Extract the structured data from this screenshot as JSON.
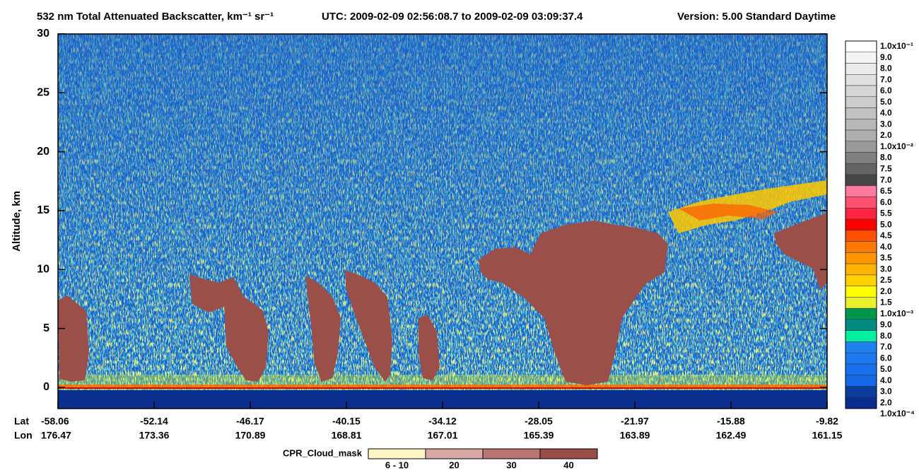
{
  "chart_data": {
    "type": "curtain",
    "title": "532 nm Total Attenuated Backscatter, km⁻¹ sr⁻¹",
    "utc": "UTC:  2009-02-09 02:56:08.7  to  2009-02-09 03:09:37.4",
    "version": "Version: 5.00  Standard  Daytime",
    "ylabel": "Altitude, km",
    "ylim": [
      -1.8,
      30
    ],
    "yticks": [
      0,
      5,
      10,
      15,
      20,
      25,
      30
    ],
    "x_row_labels": [
      "Lat",
      "Lon"
    ],
    "x_lat": [
      -58.06,
      -52.14,
      -46.17,
      -40.15,
      -34.12,
      -28.05,
      -21.97,
      -15.88,
      -9.82
    ],
    "x_lon": [
      176.47,
      173.36,
      170.89,
      168.81,
      167.01,
      165.39,
      163.89,
      162.49,
      161.15
    ],
    "colorbar_labels": [
      "1.0x10⁻¹",
      "9.0",
      "8.0",
      "7.0",
      "6.0",
      "5.0",
      "4.0",
      "3.0",
      "2.0",
      "1.0x10⁻²",
      "8.0",
      "7.5",
      "7.0",
      "6.5",
      "6.0",
      "5.5",
      "5.0",
      "4.5",
      "4.0",
      "3.5",
      "3.0",
      "2.5",
      "2.0",
      "1.5",
      "1.0x10⁻³",
      "9.0",
      "8.0",
      "7.0",
      "6.0",
      "5.0",
      "4.0",
      "3.0",
      "2.0",
      "1.0x10⁻⁴"
    ],
    "colorbar_colors": [
      "#ffffff",
      "#f4f4f4",
      "#eaeaea",
      "#e0e0e0",
      "#d6d6d6",
      "#cccccc",
      "#c2c2c2",
      "#b8b8b8",
      "#aeaeae",
      "#9a9a9a",
      "#808080",
      "#646464",
      "#464646",
      "#ff7a9e",
      "#ff4f70",
      "#ff2440",
      "#ff0000",
      "#ff5000",
      "#ff7800",
      "#ff9600",
      "#ffb400",
      "#ffd200",
      "#ffff00",
      "#e8f030",
      "#00964b",
      "#008c80",
      "#00f0a0",
      "#2080f0",
      "#1e78f0",
      "#1a70ec",
      "#1668e6",
      "#0a3c9c",
      "#082c90"
    ],
    "mask_title": "CPR_Cloud_mask",
    "mask_labels": [
      "6 - 10",
      "20",
      "30",
      "40"
    ],
    "mask_colors": [
      "#fdf7c6",
      "#d7aaa8",
      "#b87572",
      "#9a4e4a"
    ]
  }
}
